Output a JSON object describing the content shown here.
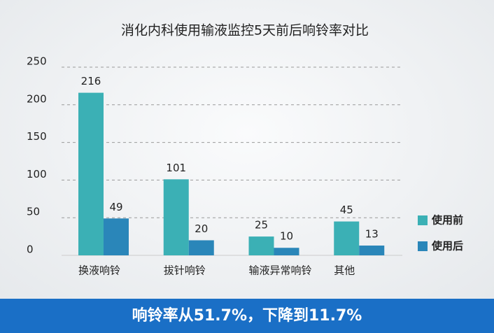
{
  "chart_data": {
    "type": "bar",
    "title": "消化内科使用输液监控5天前后响铃率对比",
    "categories": [
      "换液响铃",
      "拔针响铃",
      "输液异常响铃",
      "其他"
    ],
    "series": [
      {
        "name": "使用前",
        "color": "#3bb0b5",
        "values": [
          216,
          101,
          25,
          45
        ]
      },
      {
        "name": "使用后",
        "color": "#2a86b9",
        "values": [
          49,
          20,
          10,
          13
        ]
      }
    ],
    "ylim": [
      0,
      250
    ],
    "yticks": [
      0,
      50,
      100,
      150,
      200,
      250
    ],
    "grid": true,
    "legend": "right"
  },
  "banner": "响铃率从51.7%，下降到11.7%"
}
